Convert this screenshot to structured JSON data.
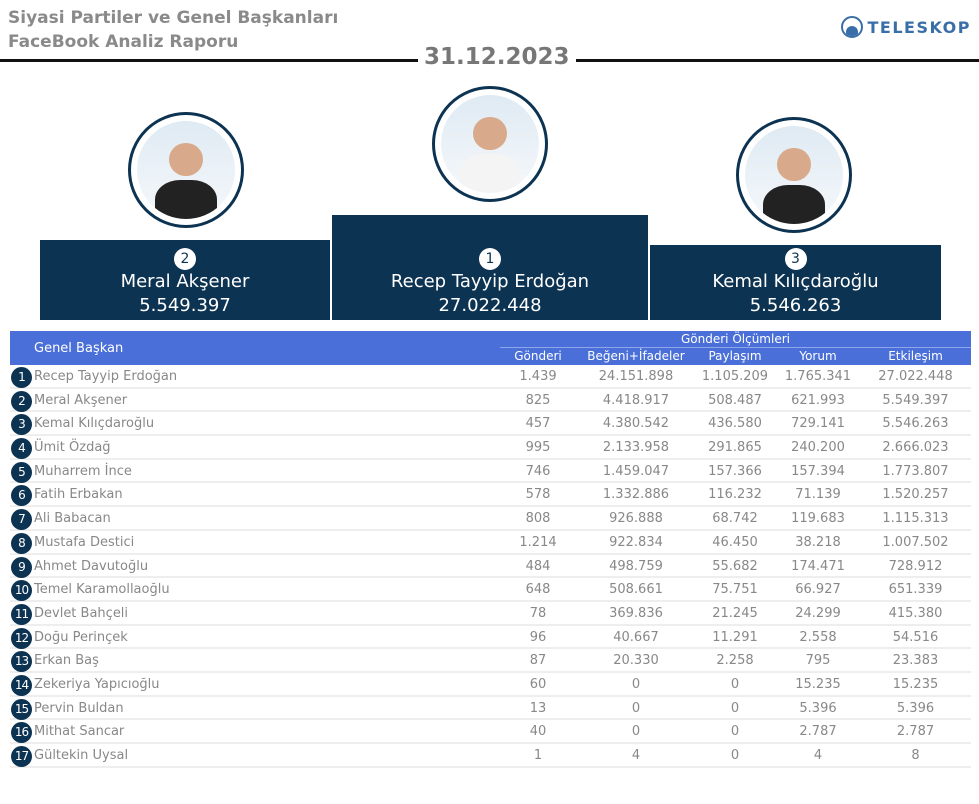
{
  "header": {
    "title_line1": "Siyasi Partiler ve Genel Başkanları",
    "title_line2": "FaceBook Analiz Raporu",
    "logo_text": "TELESKOP",
    "date": "31.12.2023"
  },
  "podium": [
    {
      "rank": "2",
      "name": "Meral Akşener",
      "value": "5.549.397"
    },
    {
      "rank": "1",
      "name": "Recep Tayyip Erdoğan",
      "value": "27.022.448"
    },
    {
      "rank": "3",
      "name": "Kemal Kılıçdaroğlu",
      "value": "5.546.263"
    }
  ],
  "table": {
    "name_header": "Genel Başkan",
    "group_header": "Gönderi Ölçümleri",
    "columns": [
      "Gönderi",
      "Beğeni+İfadeler",
      "Paylaşım",
      "Yorum",
      "Etkileşim"
    ],
    "rows": [
      {
        "rank": "1",
        "name": "Recep Tayyip Erdoğan",
        "v": [
          "1.439",
          "24.151.898",
          "1.105.209",
          "1.765.341",
          "27.022.448"
        ]
      },
      {
        "rank": "2",
        "name": "Meral Akşener",
        "v": [
          "825",
          "4.418.917",
          "508.487",
          "621.993",
          "5.549.397"
        ]
      },
      {
        "rank": "3",
        "name": "Kemal Kılıçdaroğlu",
        "v": [
          "457",
          "4.380.542",
          "436.580",
          "729.141",
          "5.546.263"
        ]
      },
      {
        "rank": "4",
        "name": "Ümit Özdağ",
        "v": [
          "995",
          "2.133.958",
          "291.865",
          "240.200",
          "2.666.023"
        ]
      },
      {
        "rank": "5",
        "name": "Muharrem İnce",
        "v": [
          "746",
          "1.459.047",
          "157.366",
          "157.394",
          "1.773.807"
        ]
      },
      {
        "rank": "6",
        "name": "Fatih Erbakan",
        "v": [
          "578",
          "1.332.886",
          "116.232",
          "71.139",
          "1.520.257"
        ]
      },
      {
        "rank": "7",
        "name": "Ali Babacan",
        "v": [
          "808",
          "926.888",
          "68.742",
          "119.683",
          "1.115.313"
        ]
      },
      {
        "rank": "8",
        "name": "Mustafa Destici",
        "v": [
          "1.214",
          "922.834",
          "46.450",
          "38.218",
          "1.007.502"
        ]
      },
      {
        "rank": "9",
        "name": "Ahmet Davutoğlu",
        "v": [
          "484",
          "498.759",
          "55.682",
          "174.471",
          "728.912"
        ]
      },
      {
        "rank": "10",
        "name": "Temel Karamollaoğlu",
        "v": [
          "648",
          "508.661",
          "75.751",
          "66.927",
          "651.339"
        ]
      },
      {
        "rank": "11",
        "name": "Devlet Bahçeli",
        "v": [
          "78",
          "369.836",
          "21.245",
          "24.299",
          "415.380"
        ]
      },
      {
        "rank": "12",
        "name": "Doğu Perinçek",
        "v": [
          "96",
          "40.667",
          "11.291",
          "2.558",
          "54.516"
        ]
      },
      {
        "rank": "13",
        "name": "Erkan Baş",
        "v": [
          "87",
          "20.330",
          "2.258",
          "795",
          "23.383"
        ]
      },
      {
        "rank": "14",
        "name": "Zekeriya Yapıcıoğlu",
        "v": [
          "60",
          "0",
          "0",
          "15.235",
          "15.235"
        ]
      },
      {
        "rank": "15",
        "name": "Pervin Buldan",
        "v": [
          "13",
          "0",
          "0",
          "5.396",
          "5.396"
        ]
      },
      {
        "rank": "16",
        "name": "Mithat Sancar",
        "v": [
          "40",
          "0",
          "0",
          "2.787",
          "2.787"
        ]
      },
      {
        "rank": "17",
        "name": "Gültekin Uysal",
        "v": [
          "1",
          "4",
          "0",
          "4",
          "8"
        ]
      }
    ]
  }
}
